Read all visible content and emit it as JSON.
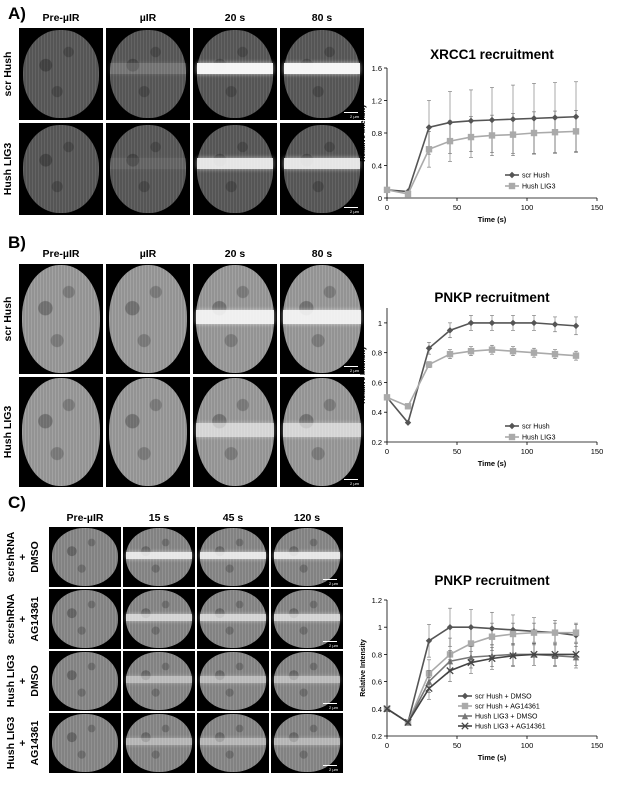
{
  "panels": {
    "A": {
      "letter": "A)",
      "columns": [
        "Pre-µIR",
        "µIR",
        "20 s",
        "80 s"
      ],
      "rows": [
        "scr Hush",
        "Hush LIG3"
      ],
      "scalebar": "2 µm"
    },
    "B": {
      "letter": "B)",
      "columns": [
        "Pre-µIR",
        "µIR",
        "20 s",
        "80 s"
      ],
      "rows": [
        "scr Hush",
        "Hush LIG3"
      ],
      "scalebar": "2 µm"
    },
    "C": {
      "letter": "C)",
      "columns": [
        "Pre-µIR",
        "15 s",
        "45 s",
        "120 s"
      ],
      "rows": [
        "scrshRNA\n+\nDMSO",
        "scrshRNA\n+\nAG14361",
        "Hush LIG3\n+\nDMSO",
        "Hush LIG3\n+\nAG14361"
      ],
      "scalebar": "2 µm"
    }
  },
  "chart_data": [
    {
      "type": "line",
      "title": "XRCC1 recruitment",
      "xlabel": "Time (s)",
      "ylabel": "Relative Intensity",
      "xlim": [
        0,
        150
      ],
      "ylim": [
        0,
        1.6
      ],
      "xticks": [
        0,
        50,
        100,
        150
      ],
      "yticks": [
        0,
        0.4,
        0.8,
        1.2,
        1.6
      ],
      "ytick_labels": [
        "0",
        "0.4",
        "0.8",
        "1.2",
        "1.6"
      ],
      "legend": "bottom-right",
      "series": [
        {
          "name": "scr Hush",
          "color": "#555555",
          "marker": "diamond",
          "x": [
            0,
            15,
            30,
            45,
            60,
            75,
            90,
            105,
            120,
            135
          ],
          "y": [
            0.1,
            0.08,
            0.87,
            0.93,
            0.95,
            0.96,
            0.97,
            0.98,
            0.99,
            1.0
          ],
          "err": [
            0,
            0,
            0.33,
            0.38,
            0.38,
            0.4,
            0.42,
            0.43,
            0.43,
            0.43
          ]
        },
        {
          "name": "Hush LIG3",
          "color": "#aaaaaa",
          "marker": "square",
          "x": [
            0,
            15,
            30,
            45,
            60,
            75,
            90,
            105,
            120,
            135
          ],
          "y": [
            0.1,
            0.05,
            0.6,
            0.7,
            0.75,
            0.77,
            0.78,
            0.8,
            0.81,
            0.82
          ],
          "err": [
            0,
            0,
            0.22,
            0.25,
            0.25,
            0.25,
            0.26,
            0.26,
            0.26,
            0.26
          ]
        }
      ]
    },
    {
      "type": "line",
      "title": "PNKP recruitment",
      "xlabel": "Time (s)",
      "ylabel": "Relative Intensity",
      "xlim": [
        0,
        150
      ],
      "ylim": [
        0.2,
        1.1
      ],
      "xticks": [
        0,
        50,
        100,
        150
      ],
      "yticks": [
        0.2,
        0.4,
        0.6,
        0.8,
        1
      ],
      "ytick_labels": [
        "0.2",
        "0.4",
        "0.6",
        "0.8",
        "1"
      ],
      "legend": "bottom-right",
      "series": [
        {
          "name": "scr Hush",
          "color": "#555555",
          "marker": "diamond",
          "x": [
            0,
            15,
            30,
            45,
            60,
            75,
            90,
            105,
            120,
            135
          ],
          "y": [
            0.5,
            0.33,
            0.83,
            0.95,
            1.0,
            1.0,
            1.0,
            1.0,
            0.99,
            0.98
          ],
          "err": [
            0,
            0,
            0.04,
            0.05,
            0.05,
            0.05,
            0.05,
            0.05,
            0.05,
            0.06
          ]
        },
        {
          "name": "Hush LIG3",
          "color": "#aaaaaa",
          "marker": "square",
          "x": [
            0,
            15,
            30,
            45,
            60,
            75,
            90,
            105,
            120,
            135
          ],
          "y": [
            0.5,
            0.44,
            0.72,
            0.79,
            0.81,
            0.82,
            0.81,
            0.8,
            0.79,
            0.78
          ],
          "err": [
            0,
            0,
            0.02,
            0.03,
            0.03,
            0.03,
            0.03,
            0.03,
            0.03,
            0.03
          ]
        }
      ]
    },
    {
      "type": "line",
      "title": "PNKP recruitment",
      "xlabel": "Time (s)",
      "ylabel": "Relative Intensity",
      "xlim": [
        0,
        150
      ],
      "ylim": [
        0.2,
        1.2
      ],
      "xticks": [
        0,
        50,
        100,
        150
      ],
      "yticks": [
        0.2,
        0.4,
        0.6,
        0.8,
        1,
        1.2
      ],
      "ytick_labels": [
        "0.2",
        "0.4",
        "0.6",
        "0.8",
        "1",
        "1.2"
      ],
      "legend": "bottom-right",
      "series": [
        {
          "name": "scr Hush + DMSO",
          "color": "#555555",
          "marker": "diamond",
          "x": [
            0,
            15,
            30,
            45,
            60,
            75,
            90,
            105,
            120,
            135
          ],
          "y": [
            0.4,
            0.3,
            0.9,
            1.0,
            1.0,
            0.99,
            0.98,
            0.97,
            0.96,
            0.94
          ],
          "err": [
            0,
            0,
            0.12,
            0.14,
            0.13,
            0.12,
            0.11,
            0.1,
            0.09,
            0.08
          ]
        },
        {
          "name": "scr Hush + AG14361",
          "color": "#aaaaaa",
          "marker": "square",
          "x": [
            0,
            15,
            30,
            45,
            60,
            75,
            90,
            105,
            120,
            135
          ],
          "y": [
            0.4,
            0.3,
            0.66,
            0.8,
            0.88,
            0.93,
            0.95,
            0.96,
            0.96,
            0.96
          ],
          "err": [
            0,
            0,
            0.1,
            0.12,
            0.12,
            0.1,
            0.08,
            0.07,
            0.07,
            0.07
          ]
        },
        {
          "name": "Hush LIG3 + DMSO",
          "color": "#777777",
          "marker": "triangle",
          "x": [
            0,
            15,
            30,
            45,
            60,
            75,
            90,
            105,
            120,
            135
          ],
          "y": [
            0.4,
            0.3,
            0.6,
            0.75,
            0.78,
            0.79,
            0.8,
            0.8,
            0.79,
            0.78
          ],
          "err": [
            0,
            0,
            0.08,
            0.08,
            0.08,
            0.08,
            0.08,
            0.08,
            0.08,
            0.08
          ]
        },
        {
          "name": "Hush LIG3 + AG14361",
          "color": "#444444",
          "marker": "x",
          "x": [
            0,
            15,
            30,
            45,
            60,
            75,
            90,
            105,
            120,
            135
          ],
          "y": [
            0.4,
            0.3,
            0.55,
            0.68,
            0.74,
            0.77,
            0.79,
            0.8,
            0.8,
            0.8
          ],
          "err": [
            0,
            0,
            0.08,
            0.08,
            0.08,
            0.08,
            0.08,
            0.08,
            0.08,
            0.08
          ]
        }
      ]
    }
  ]
}
